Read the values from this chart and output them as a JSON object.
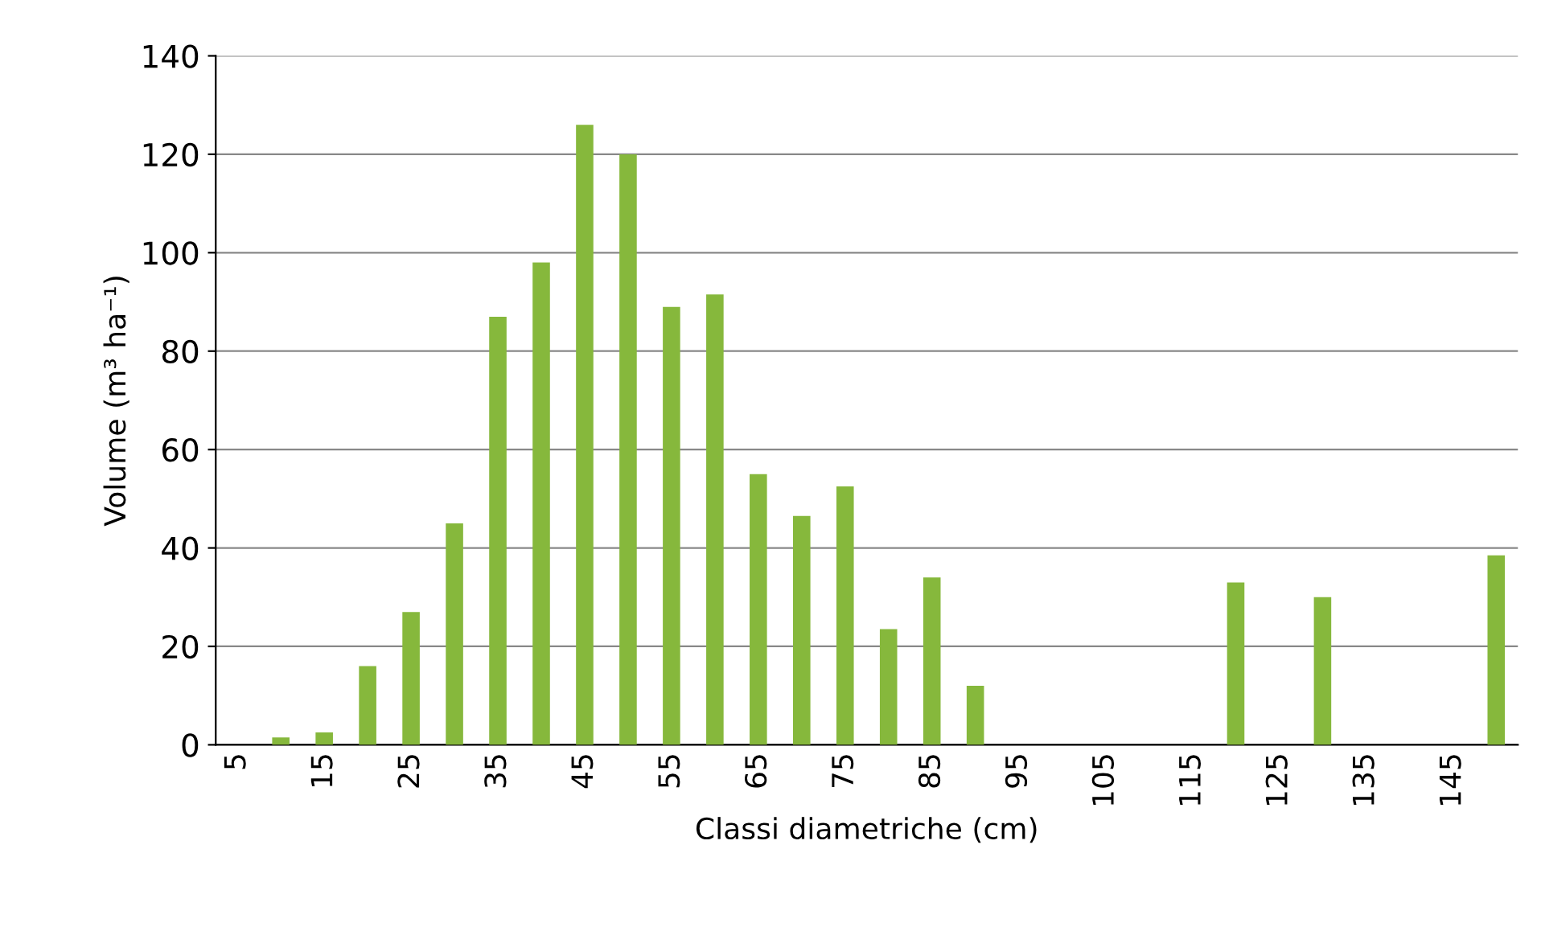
{
  "chart_data": {
    "type": "bar",
    "xlabel": "Classi diametriche (cm)",
    "ylabel": "Volume (m³ ha⁻¹)",
    "categories": [
      "5",
      null,
      "15",
      null,
      "25",
      null,
      "35",
      null,
      "45",
      null,
      "55",
      null,
      "65",
      null,
      "75",
      null,
      "85",
      null,
      "95",
      null,
      "105",
      null,
      "115",
      null,
      "125",
      null,
      "135",
      null,
      "145",
      null
    ],
    "values": [
      0,
      1.5,
      2.5,
      16,
      27,
      45,
      87,
      98,
      126,
      120,
      89,
      91.5,
      55,
      46.5,
      52.5,
      23.5,
      34,
      12,
      0,
      0,
      0,
      0,
      0,
      33,
      0,
      30,
      0,
      0,
      0,
      38.5
    ],
    "color": "#86b83c",
    "ylim": [
      0,
      140
    ],
    "yticks": [
      0,
      20,
      40,
      60,
      80,
      100,
      120,
      140
    ],
    "grid": "y"
  }
}
